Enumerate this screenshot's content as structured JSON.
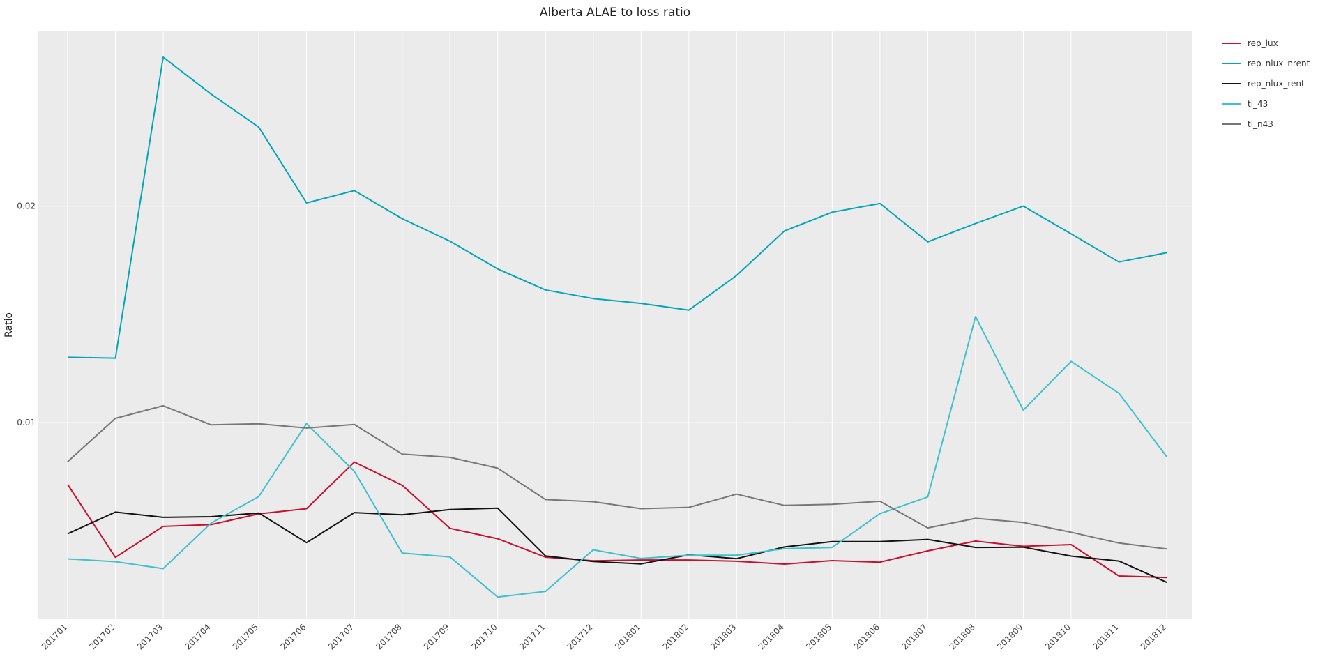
{
  "chart_data": {
    "type": "line",
    "title": "Alberta ALAE to loss ratio",
    "xlabel": "",
    "ylabel": "Ratio",
    "categories": [
      "201701",
      "201702",
      "201703",
      "201704",
      "201705",
      "201706",
      "201707",
      "201708",
      "201709",
      "201710",
      "201711",
      "201712",
      "201801",
      "201802",
      "201803",
      "201804",
      "201805",
      "201806",
      "201807",
      "201808",
      "201809",
      "201810",
      "201811",
      "201812"
    ],
    "ylim": [
      0.000925,
      0.02807
    ],
    "yticks": [
      0.01,
      0.02
    ],
    "ytick_labels": [
      "0.01",
      "0.02"
    ],
    "grid": true,
    "legend_position": "right",
    "series": [
      {
        "name": "rep_lux",
        "color": "#c8102e",
        "values": [
          0.00715,
          0.00378,
          0.00521,
          0.00529,
          0.00579,
          0.00603,
          0.00818,
          0.00711,
          0.00512,
          0.00464,
          0.00379,
          0.00362,
          0.00366,
          0.00366,
          0.0036,
          0.00347,
          0.00363,
          0.00356,
          0.00408,
          0.00453,
          0.00429,
          0.00437,
          0.00292,
          0.00285
        ]
      },
      {
        "name": "rep_nlux_nrent",
        "color": "#00a6b8",
        "values": [
          0.01302,
          0.01298,
          0.02688,
          0.02518,
          0.02365,
          0.02015,
          0.02072,
          0.01942,
          0.01838,
          0.0171,
          0.01613,
          0.01573,
          0.01551,
          0.0152,
          0.0168,
          0.01885,
          0.01972,
          0.02012,
          0.01835,
          0.0192,
          0.02,
          0.01872,
          0.01742,
          0.01785
        ]
      },
      {
        "name": "rep_nlux_rent",
        "color": "#111111",
        "values": [
          0.00487,
          0.00587,
          0.00563,
          0.00566,
          0.00583,
          0.00446,
          0.00585,
          0.00575,
          0.00599,
          0.00605,
          0.00385,
          0.00359,
          0.00348,
          0.0039,
          0.00372,
          0.00426,
          0.00451,
          0.00451,
          0.00461,
          0.00424,
          0.00425,
          0.00384,
          0.00361,
          0.00263
        ]
      },
      {
        "name": "tl_43",
        "color": "#3ec1cc",
        "values": [
          0.00371,
          0.00358,
          0.00326,
          0.00536,
          0.00659,
          0.00996,
          0.00775,
          0.00398,
          0.0038,
          0.00195,
          0.00221,
          0.00413,
          0.00373,
          0.00388,
          0.00388,
          0.00418,
          0.00424,
          0.0058,
          0.00657,
          0.0149,
          0.01058,
          0.01283,
          0.01136,
          0.00843
        ]
      },
      {
        "name": "tl_n43",
        "color": "#777777",
        "values": [
          0.0082,
          0.0102,
          0.01078,
          0.0099,
          0.00995,
          0.00975,
          0.00992,
          0.00855,
          0.0084,
          0.0079,
          0.00645,
          0.00635,
          0.00603,
          0.00609,
          0.0067,
          0.00618,
          0.00623,
          0.00637,
          0.00514,
          0.00558,
          0.00539,
          0.00494,
          0.00444,
          0.00417
        ]
      }
    ]
  }
}
